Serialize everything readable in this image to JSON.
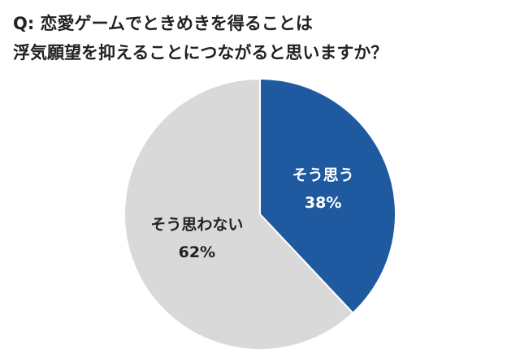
{
  "chart_data": {
    "type": "pie",
    "title": [
      "Q: 恋愛ゲームでときめきを得ることは",
      "浮気願望を抑えることにつながると思いますか？"
    ],
    "categories": [
      "そう思う",
      "そう思わない"
    ],
    "values": [
      38,
      62
    ],
    "value_labels": [
      "38%",
      "62%"
    ],
    "colors": [
      "#1f5aa0",
      "#d9d9d9"
    ],
    "label_colors": [
      "#ffffff",
      "#222222"
    ]
  }
}
